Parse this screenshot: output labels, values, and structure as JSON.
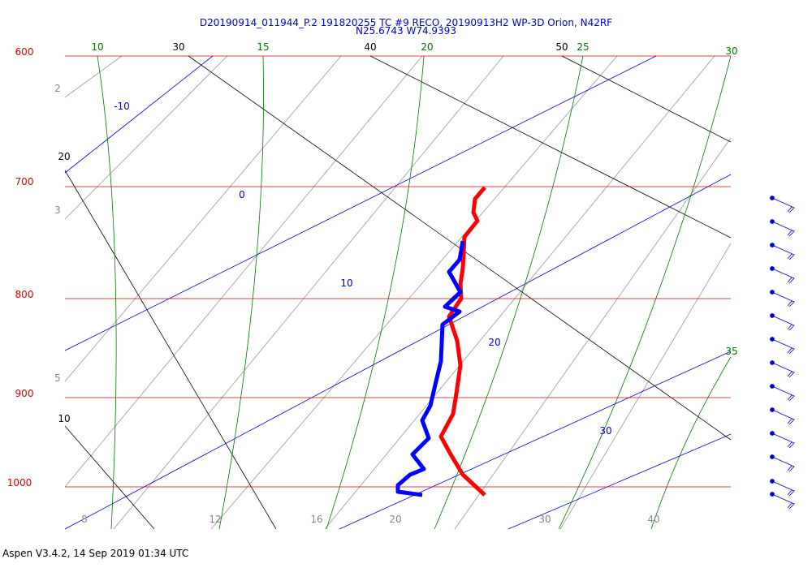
{
  "header": {
    "title": "D20190914_011944_P.2 191820255 TC #9 RECO, 20190913H2 WP-3D Orion, N42RF",
    "subtitle": "N25.6743 W74.9393"
  },
  "pressure_labels": [
    "600",
    "700",
    "800",
    "900",
    "1000"
  ],
  "theta_labels": [
    "30",
    "40",
    "50",
    "20",
    "10"
  ],
  "moist_labels": [
    "10",
    "15",
    "20",
    "25",
    "30",
    "35"
  ],
  "temp_labels": [
    "-10",
    "0",
    "10",
    "20",
    "30"
  ],
  "mixing_labels": [
    "2",
    "3",
    "5"
  ],
  "bottom_labels": [
    "8",
    "12",
    "16",
    "20",
    "30",
    "40"
  ],
  "footer": "Aspen V3.4.2, 14 Sep 2019  01:34 UTC"
}
